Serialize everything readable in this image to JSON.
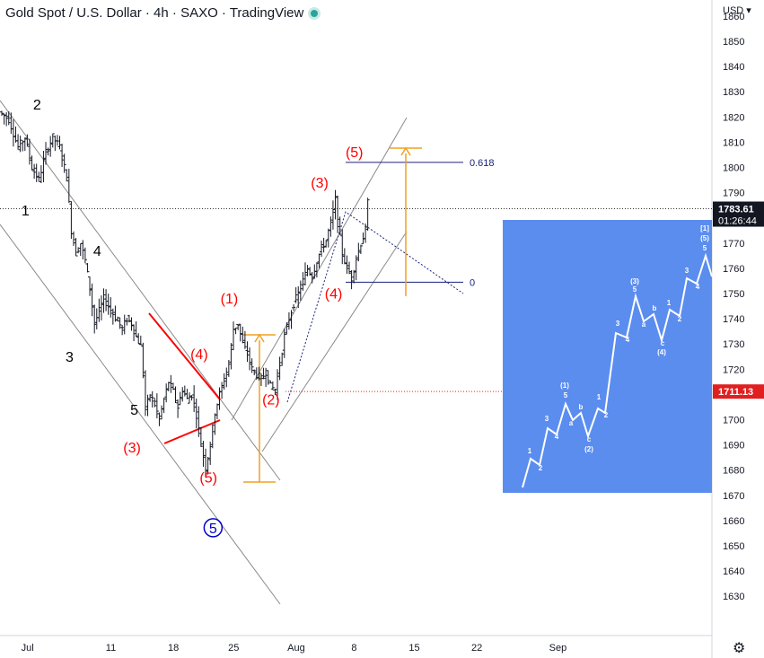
{
  "header": {
    "title": "Gold Spot / U.S. Dollar · 4h · SAXO · TradingView",
    "currency": "USD",
    "currency_caret": "▾"
  },
  "colors": {
    "wave_red": "#ff0000",
    "wave_black": "#000000",
    "wave_blue": "#0000cc",
    "fib_line": "#1a237e",
    "target_arrow": "#f0a020",
    "channel": "#8a8a8a",
    "inset_bg": "#5b8def",
    "price_tag": "#131722",
    "level_tag": "#e02020"
  },
  "chart_data": {
    "type": "candlestick",
    "instrument": "Gold Spot / U.S. Dollar",
    "timeframe": "4h",
    "source": "SAXO",
    "x_ticks": [
      "Jul",
      "11",
      "18",
      "25",
      "Aug",
      "8",
      "15",
      "22",
      "Sep"
    ],
    "y_ticks": [
      1860,
      1850,
      1840,
      1830,
      1820,
      1810,
      1800,
      1790,
      1780,
      1770,
      1760,
      1750,
      1740,
      1730,
      1720,
      1710,
      1700,
      1690,
      1680,
      1670,
      1660,
      1650,
      1640,
      1630
    ],
    "ylim": [
      1620,
      1866
    ],
    "current_price": {
      "label": "1783.61",
      "countdown": "01:26:44",
      "value": 1783.61
    },
    "level_marker": {
      "label": "1711.13",
      "value": 1711.13
    },
    "fib_levels": [
      {
        "label": "0.618",
        "value": 1802
      },
      {
        "label": "0",
        "value": 1754.5
      }
    ],
    "price_path": [
      [
        0,
        1822
      ],
      [
        4,
        1819
      ],
      [
        8,
        1808
      ],
      [
        11,
        1812
      ],
      [
        14,
        1800
      ],
      [
        17,
        1795
      ],
      [
        20,
        1806
      ],
      [
        23,
        1812
      ],
      [
        26,
        1808
      ],
      [
        29,
        1796
      ],
      [
        31,
        1775
      ],
      [
        33,
        1766
      ],
      [
        35,
        1770
      ],
      [
        37,
        1763
      ],
      [
        39,
        1752
      ],
      [
        41,
        1738
      ],
      [
        43,
        1743
      ],
      [
        45,
        1748
      ],
      [
        47,
        1745
      ],
      [
        49,
        1742
      ],
      [
        51,
        1739
      ],
      [
        53,
        1736
      ],
      [
        55,
        1740
      ],
      [
        57,
        1738
      ],
      [
        59,
        1733
      ],
      [
        61,
        1729
      ],
      [
        62,
        1718
      ],
      [
        63,
        1704
      ],
      [
        65,
        1710
      ],
      [
        67,
        1706
      ],
      [
        69,
        1700
      ],
      [
        71,
        1708
      ],
      [
        73,
        1715
      ],
      [
        75,
        1711
      ],
      [
        77,
        1705
      ],
      [
        79,
        1712
      ],
      [
        81,
        1708
      ],
      [
        83,
        1710
      ],
      [
        85,
        1702
      ],
      [
        87,
        1690
      ],
      [
        89,
        1681
      ],
      [
        91,
        1690
      ],
      [
        93,
        1703
      ],
      [
        95,
        1710
      ],
      [
        97,
        1716
      ],
      [
        99,
        1722
      ],
      [
        101,
        1736
      ],
      [
        103,
        1738
      ],
      [
        105,
        1730
      ],
      [
        107,
        1726
      ],
      [
        109,
        1720
      ],
      [
        111,
        1718
      ],
      [
        113,
        1716
      ],
      [
        115,
        1719
      ],
      [
        117,
        1713
      ],
      [
        119,
        1712
      ],
      [
        121,
        1722
      ],
      [
        123,
        1733
      ],
      [
        125,
        1740
      ],
      [
        127,
        1746
      ],
      [
        129,
        1750
      ],
      [
        131,
        1755
      ],
      [
        133,
        1760
      ],
      [
        135,
        1757
      ],
      [
        137,
        1763
      ],
      [
        139,
        1768
      ],
      [
        141,
        1771
      ],
      [
        143,
        1778
      ],
      [
        145,
        1787
      ],
      [
        146,
        1778
      ],
      [
        148,
        1766
      ],
      [
        150,
        1760
      ],
      [
        152,
        1756
      ],
      [
        154,
        1764
      ],
      [
        156,
        1770
      ],
      [
        158,
        1775
      ],
      [
        159,
        1786
      ]
    ],
    "x_tick_bars": [
      8,
      44,
      71,
      97,
      124,
      149,
      175,
      202,
      237
    ],
    "wave_labels": [
      {
        "text": "2",
        "bar": 16,
        "y": 1823,
        "color": "black",
        "size": "lg"
      },
      {
        "text": "1",
        "bar": 11,
        "y": 1781,
        "color": "black",
        "size": "lg"
      },
      {
        "text": "4",
        "bar": 42,
        "y": 1765,
        "color": "black",
        "size": "lg"
      },
      {
        "text": "3",
        "bar": 30,
        "y": 1723,
        "color": "black",
        "size": "lg"
      },
      {
        "text": "5",
        "bar": 58,
        "y": 1702,
        "color": "black",
        "size": "lg"
      },
      {
        "text": "(3)",
        "bar": 57,
        "y": 1687,
        "color": "red",
        "size": "lg"
      },
      {
        "text": "(4)",
        "bar": 86,
        "y": 1724,
        "color": "red",
        "size": "lg"
      },
      {
        "text": "(5)",
        "bar": 90,
        "y": 1675,
        "color": "red",
        "size": "lg"
      },
      {
        "text": "(1)",
        "bar": 99,
        "y": 1746,
        "color": "red",
        "size": "lg"
      },
      {
        "text": "(2)",
        "bar": 117,
        "y": 1706,
        "color": "red",
        "size": "lg"
      },
      {
        "text": "(3)",
        "bar": 138,
        "y": 1792,
        "color": "red",
        "size": "lg"
      },
      {
        "text": "(4)",
        "bar": 144,
        "y": 1748,
        "color": "red",
        "size": "lg"
      },
      {
        "text": "(5)",
        "bar": 153,
        "y": 1804,
        "color": "red",
        "size": "lg"
      }
    ],
    "circled_label": {
      "text": "5",
      "bar": 92,
      "y": 1655,
      "color": "blue"
    },
    "inset": {
      "path_labels": [
        {
          "text": "1",
          "x": 590,
          "y": 505
        },
        {
          "text": "2",
          "x": 602,
          "y": 524
        },
        {
          "text": "3",
          "x": 609,
          "y": 469
        },
        {
          "text": "4",
          "x": 620,
          "y": 489
        },
        {
          "text": "(1)",
          "x": 629,
          "y": 432
        },
        {
          "text": "5",
          "x": 630,
          "y": 443
        },
        {
          "text": "a",
          "x": 636,
          "y": 474
        },
        {
          "text": "b",
          "x": 647,
          "y": 456
        },
        {
          "text": "c",
          "x": 656,
          "y": 492
        },
        {
          "text": "(2)",
          "x": 656,
          "y": 503
        },
        {
          "text": "1",
          "x": 667,
          "y": 445
        },
        {
          "text": "2",
          "x": 675,
          "y": 465
        },
        {
          "text": "3",
          "x": 688,
          "y": 363
        },
        {
          "text": "4",
          "x": 699,
          "y": 381
        },
        {
          "text": "(3)",
          "x": 707,
          "y": 316
        },
        {
          "text": "5",
          "x": 707,
          "y": 325
        },
        {
          "text": "a",
          "x": 717,
          "y": 364
        },
        {
          "text": "b",
          "x": 729,
          "y": 346
        },
        {
          "text": "c",
          "x": 738,
          "y": 385
        },
        {
          "text": "(4)",
          "x": 737,
          "y": 395
        },
        {
          "text": "1",
          "x": 745,
          "y": 340
        },
        {
          "text": "2",
          "x": 757,
          "y": 358
        },
        {
          "text": "3",
          "x": 765,
          "y": 304
        },
        {
          "text": "4",
          "x": 777,
          "y": 322
        },
        {
          "text": "[1]",
          "x": 785,
          "y": 257
        },
        {
          "text": "(5)",
          "x": 785,
          "y": 268
        },
        {
          "text": "5",
          "x": 785,
          "y": 279
        }
      ]
    }
  }
}
